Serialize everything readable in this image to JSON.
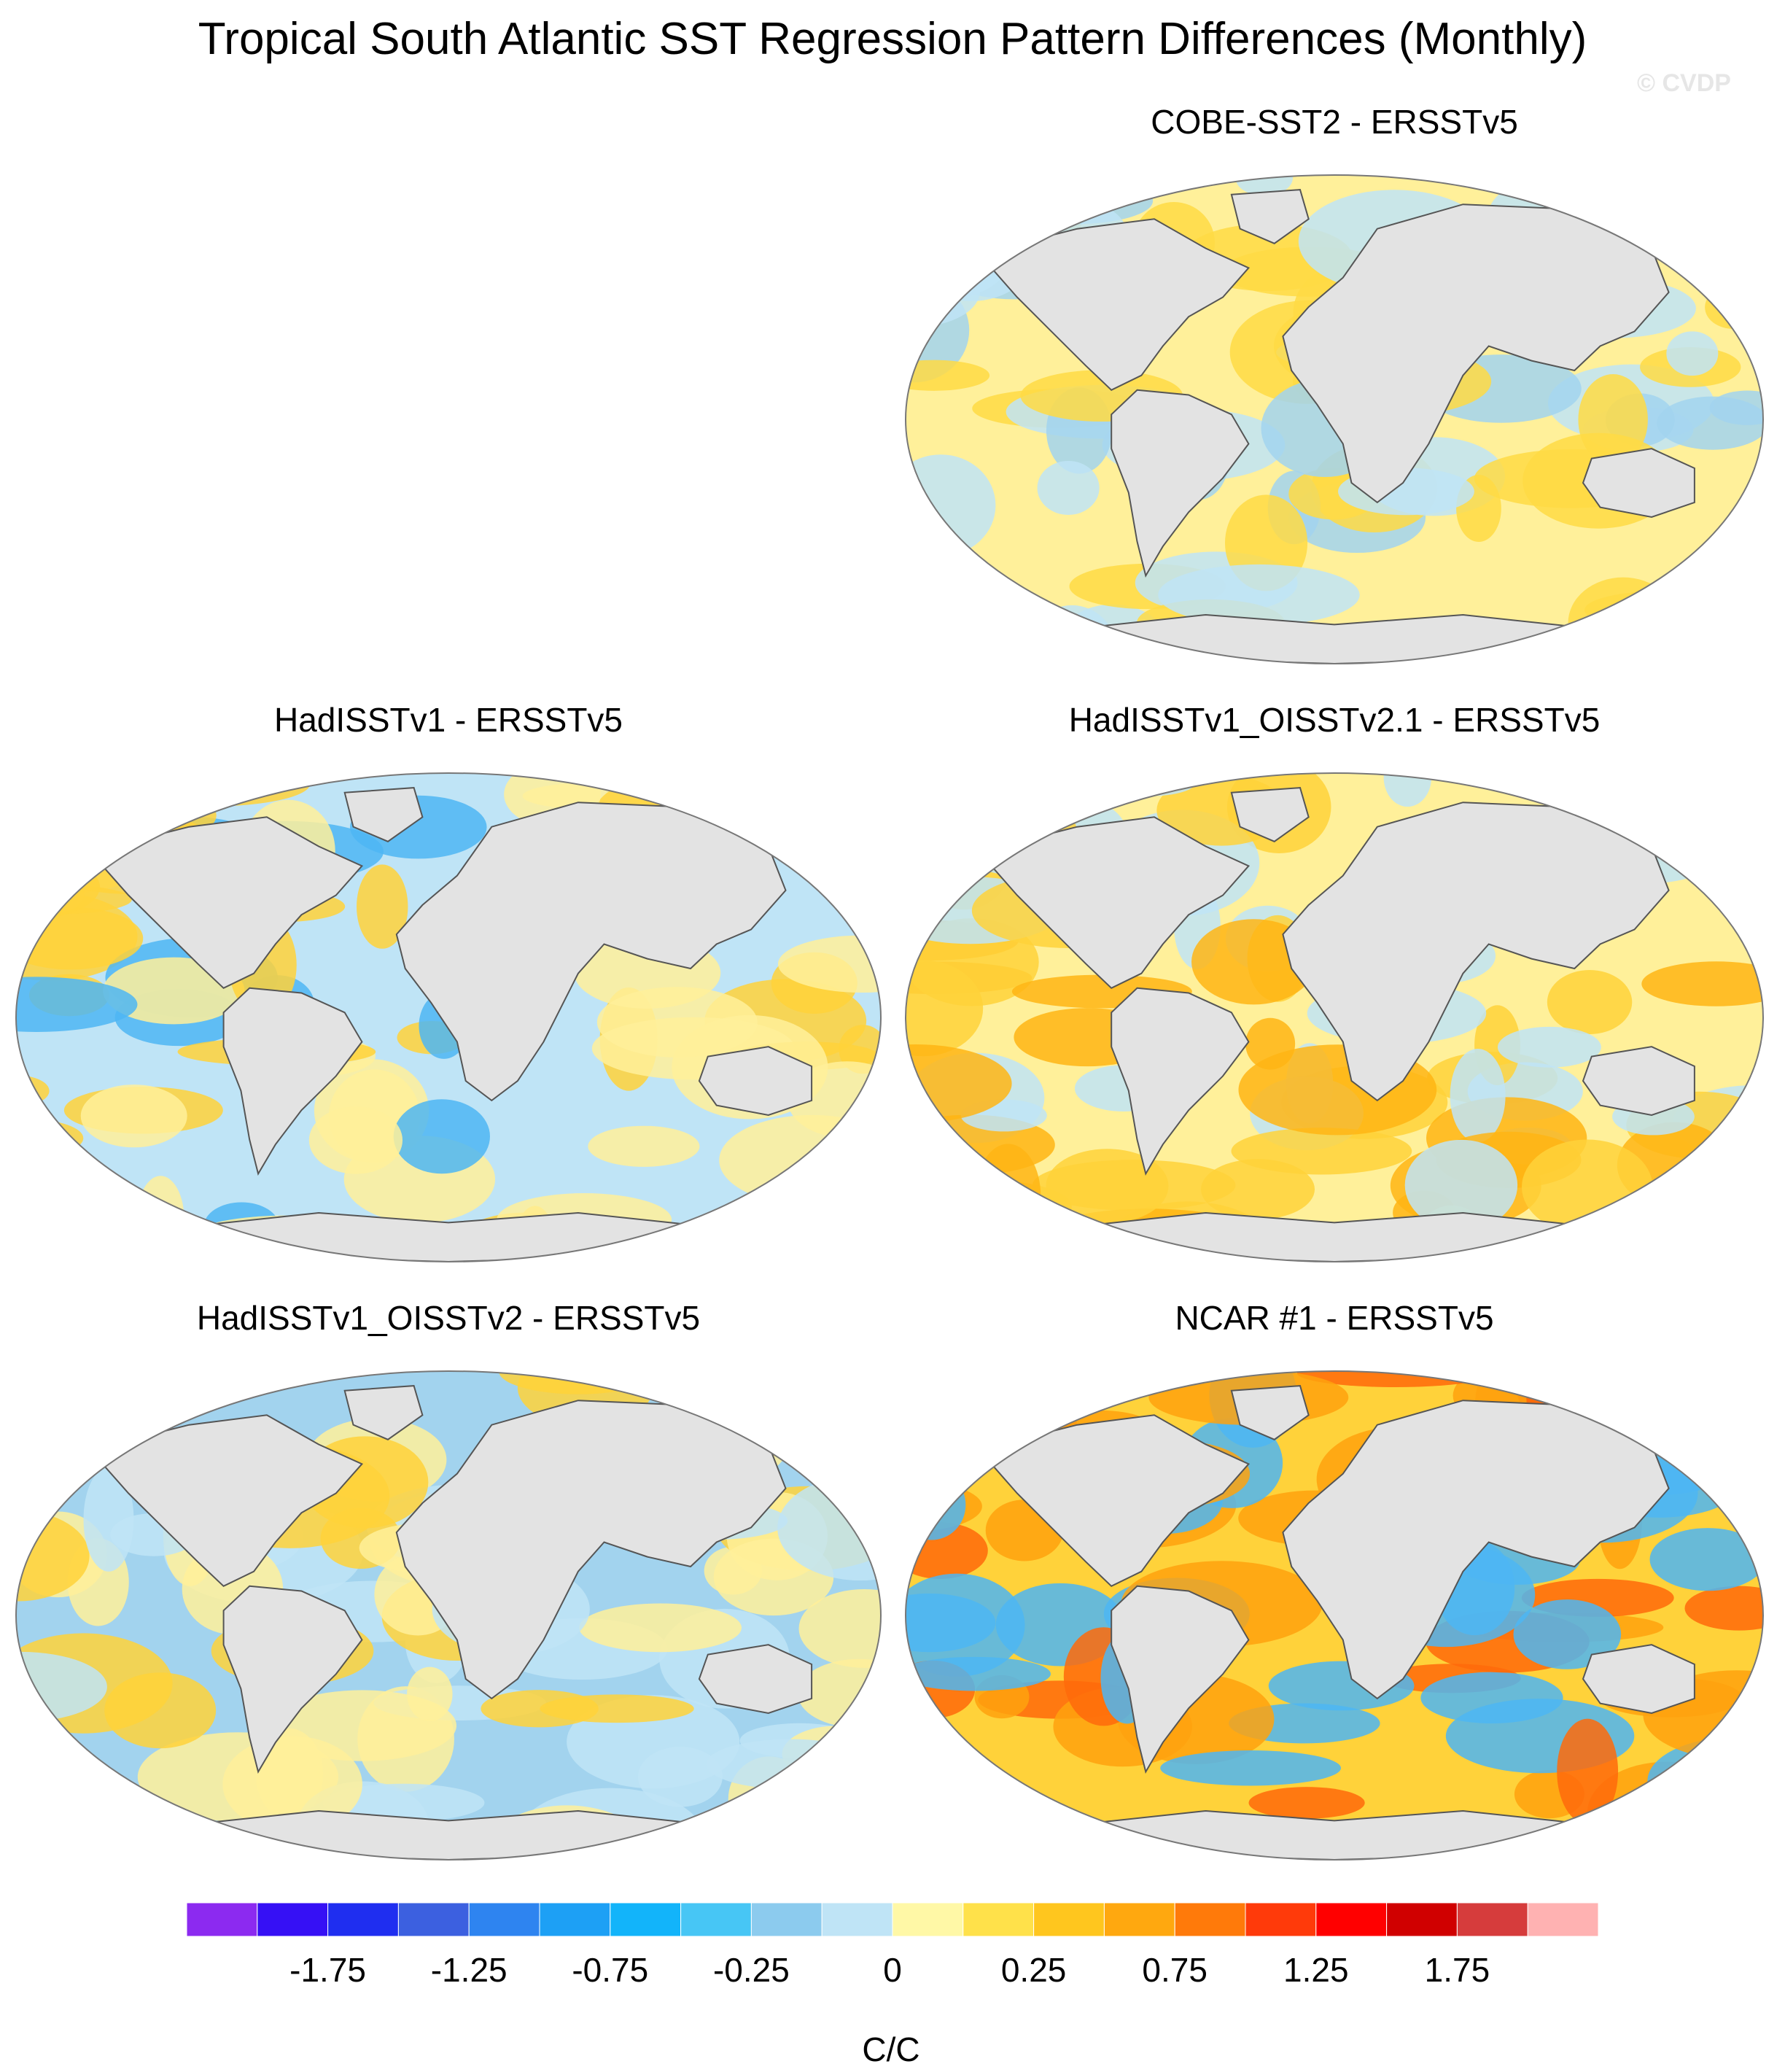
{
  "title": "Tropical South Atlantic SST Regression Pattern Differences (Monthly)",
  "watermark": "© CVDP",
  "panels": [
    {
      "id": "p1",
      "title": "COBE-SST2 - ERSSTv5",
      "dominant": "#fff09a",
      "secondary": "#ffdb44",
      "tertiary": "#bfe4f6",
      "accent": "#a2d3ee"
    },
    {
      "id": "p2",
      "title": "HadISSTv1 - ERSSTv5",
      "dominant": "#bfe4f6",
      "secondary": "#fff09a",
      "tertiary": "#ffd23a",
      "accent": "#4eb6f3"
    },
    {
      "id": "p3",
      "title": "HadISSTv1_OISSTv2.1 - ERSSTv5",
      "dominant": "#fff09a",
      "secondary": "#ffd23a",
      "tertiary": "#bfe4f6",
      "accent": "#ffb514"
    },
    {
      "id": "p4",
      "title": "HadISSTv1_OISSTv2 - ERSSTv5",
      "dominant": "#a2d3ee",
      "secondary": "#bfe4f6",
      "tertiary": "#fff09a",
      "accent": "#ffd23a"
    },
    {
      "id": "p5",
      "title": "NCAR #1 - ERSSTv5",
      "dominant": "#ffd23a",
      "secondary": "#ffa20e",
      "tertiary": "#4eb6f3",
      "accent": "#ff6a0a"
    }
  ],
  "colorbar": {
    "unit": "C/C",
    "tick_labels": [
      "-1.75",
      "-1.25",
      "-0.75",
      "-0.25",
      "0",
      "0.25",
      "0.75",
      "1.25",
      "1.75"
    ],
    "colors": [
      "#8c2af0",
      "#3610f5",
      "#1f2ef0",
      "#3c60e0",
      "#2e84f0",
      "#1da0f5",
      "#12b4fa",
      "#47c6f5",
      "#8ccbee",
      "#bfe4f6",
      "#fff8a6",
      "#ffe14a",
      "#ffc61e",
      "#ffa80f",
      "#ff7a0a",
      "#ff3a0a",
      "#ff0000",
      "#d00000",
      "#d63c3c",
      "#ffb2b2"
    ]
  }
}
